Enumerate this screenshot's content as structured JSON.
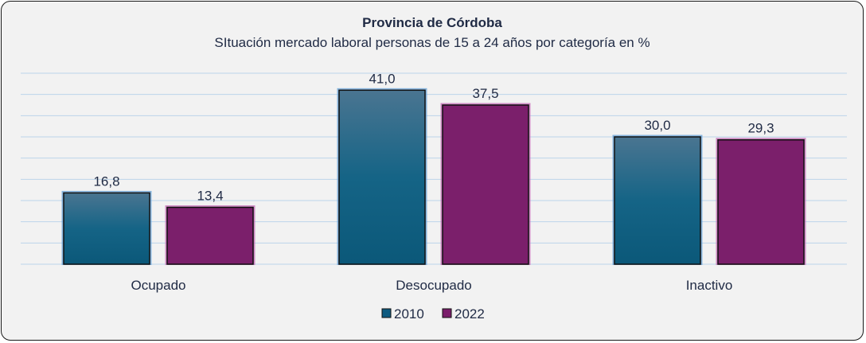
{
  "chart_data": {
    "type": "bar",
    "title": "Provincia de Córdoba",
    "subtitle": "SItuación mercado laboral personas de 15 a 24 años por categoría en %",
    "categories": [
      "Ocupado",
      "Desocupado",
      "Inactivo"
    ],
    "series": [
      {
        "name": "2010",
        "values": [
          16.8,
          41.0,
          30.0
        ],
        "labels": [
          "16,8",
          "41,0",
          "30,0"
        ],
        "color": "#0f5b80"
      },
      {
        "name": "2022",
        "values": [
          13.4,
          37.5,
          29.3
        ],
        "labels": [
          "13,4",
          "37,5",
          "29,3"
        ],
        "color": "#7b1f6b"
      }
    ],
    "ylim": [
      0,
      45
    ],
    "grid": true,
    "legend": "bottom"
  }
}
